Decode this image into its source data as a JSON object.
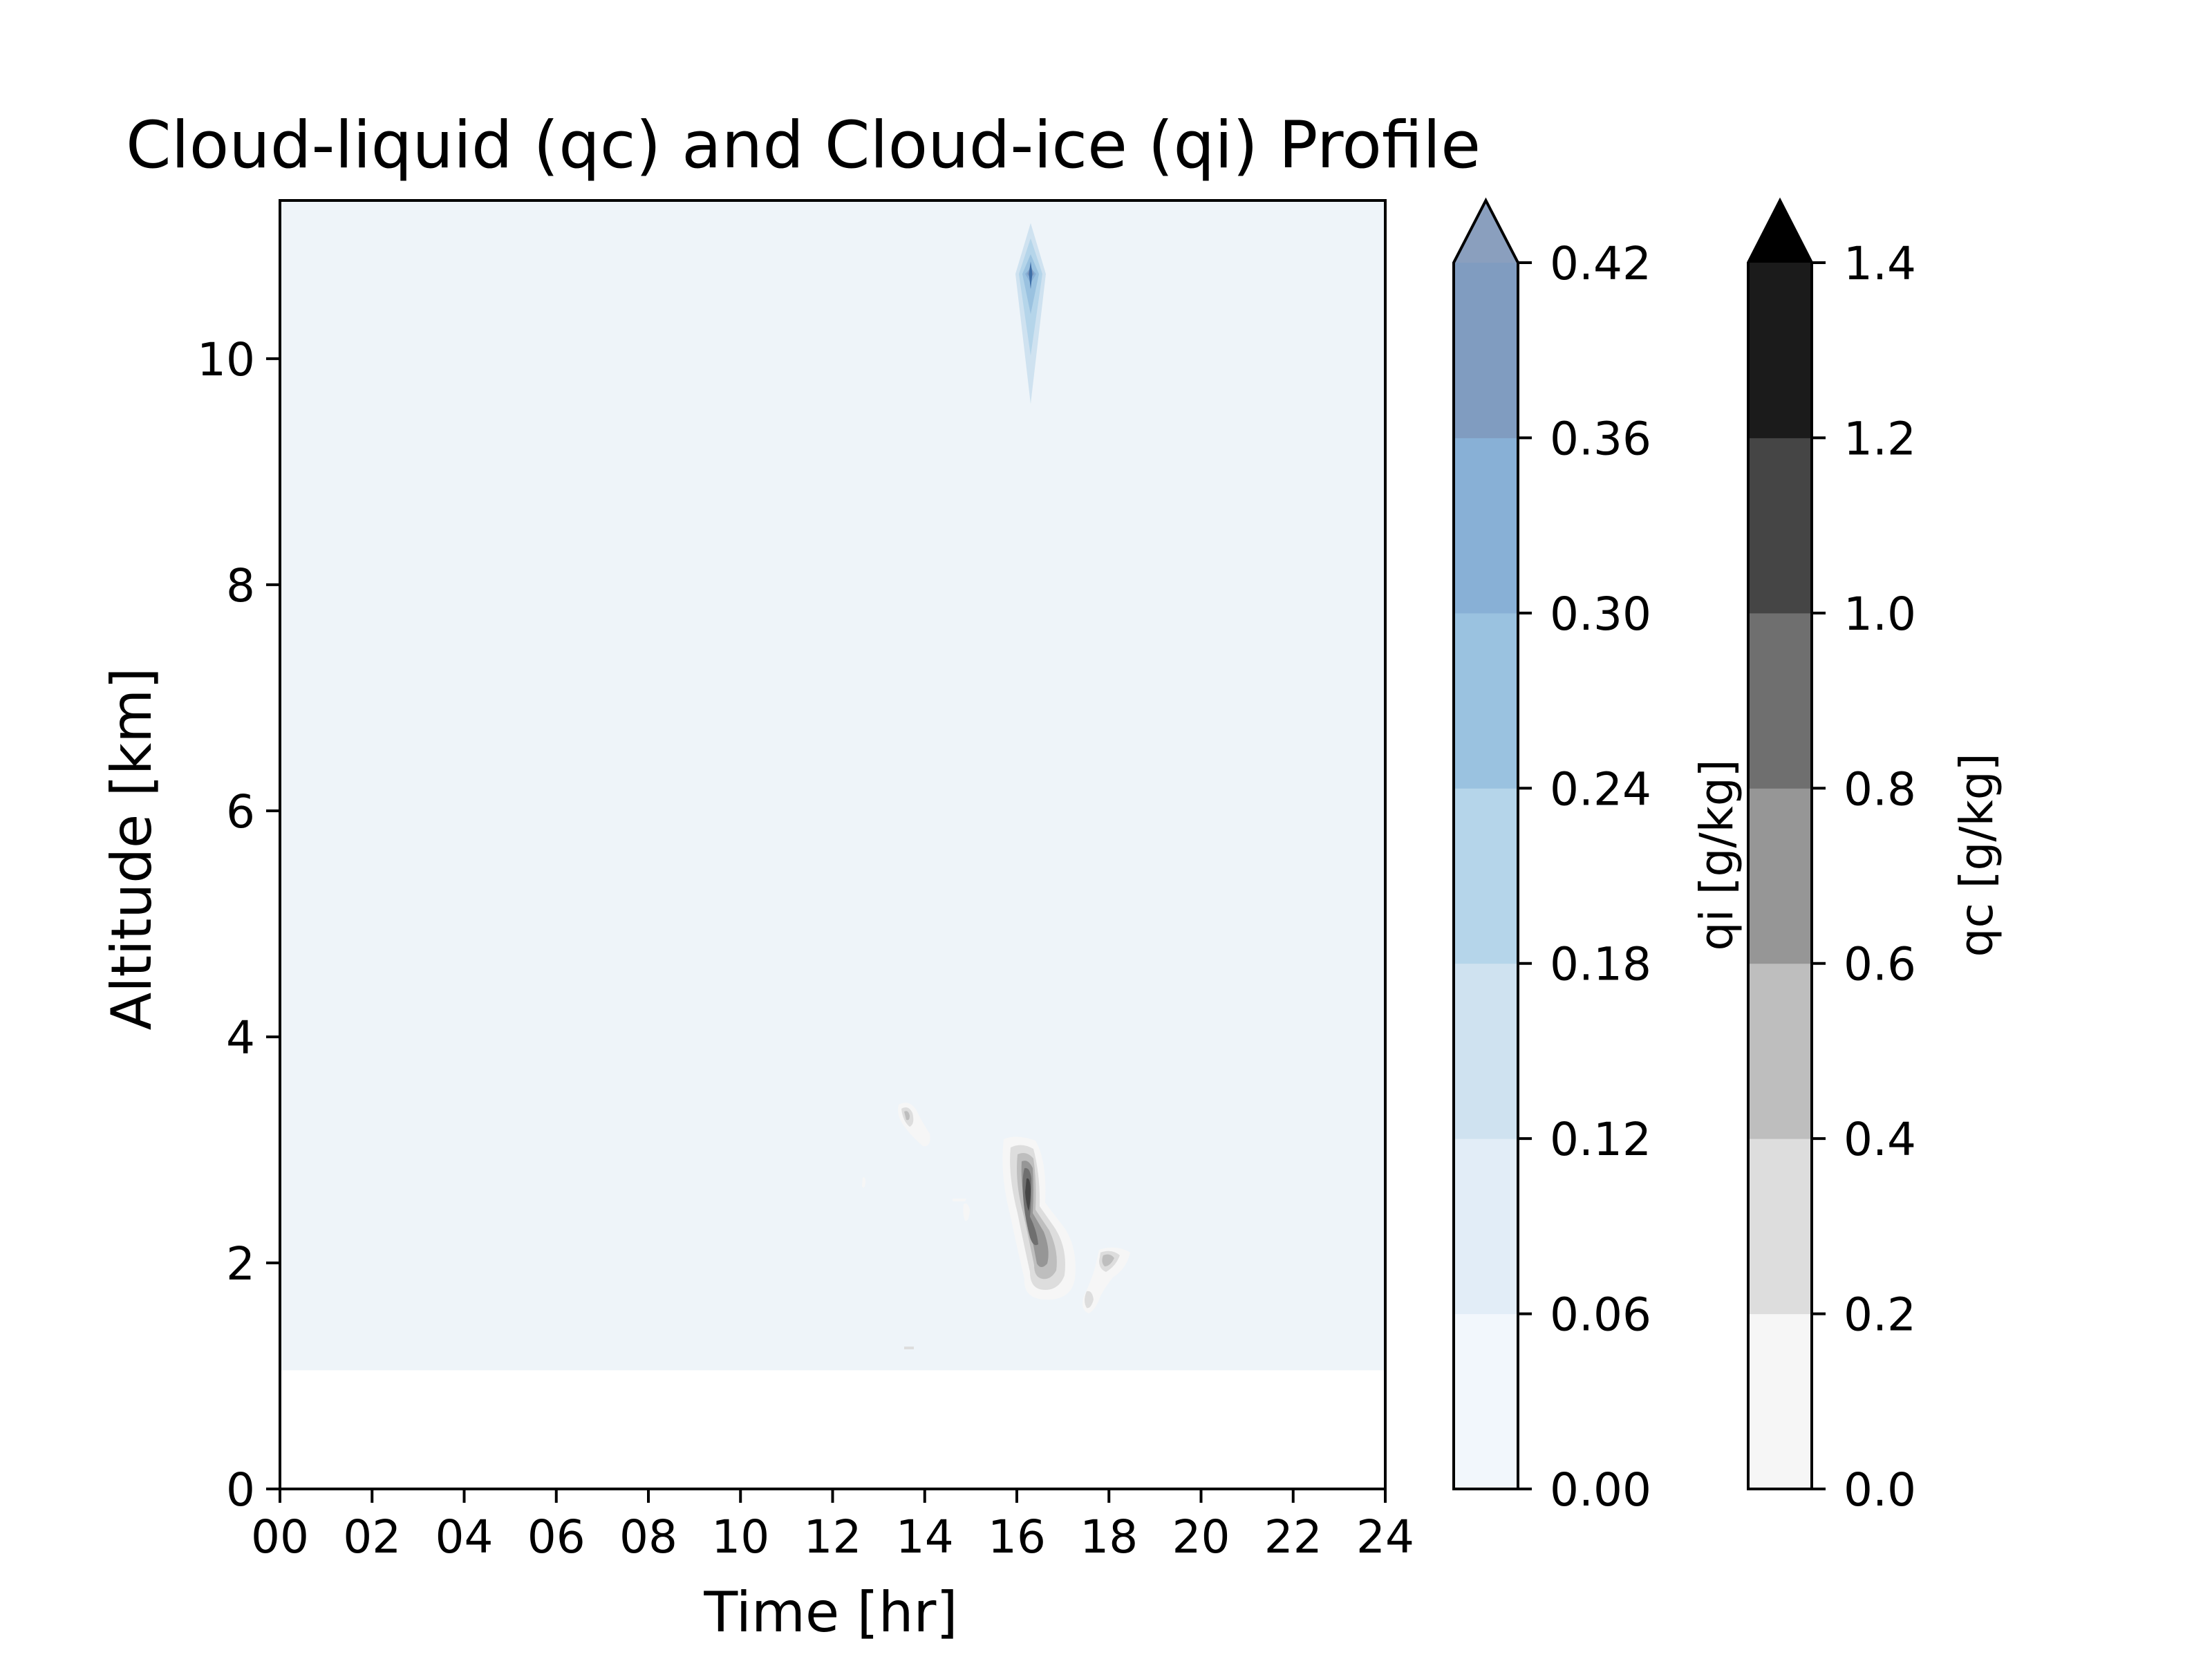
{
  "chart_data": {
    "type": "heatmap",
    "title": "Cloud-liquid (qc) and Cloud-ice (qi) Profile",
    "xlabel": "Time [hr]",
    "ylabel": "Altitude [km]",
    "xlim": [
      0,
      24
    ],
    "ylim": [
      0,
      11.4
    ],
    "x_ticks": [
      "00",
      "02",
      "04",
      "06",
      "08",
      "10",
      "12",
      "14",
      "16",
      "18",
      "20",
      "22",
      "24"
    ],
    "y_ticks": [
      "0",
      "2",
      "4",
      "6",
      "8",
      "10"
    ],
    "grid": false,
    "background_field": {
      "variable": "qi",
      "level": 0.02,
      "altitude_range_km": [
        1.05,
        11.4
      ],
      "time_range_hr": [
        0,
        24
      ]
    },
    "colorbars": [
      {
        "label": "qi [g/kg]",
        "levels": [
          "0.00",
          "0.06",
          "0.12",
          "0.18",
          "0.24",
          "0.30",
          "0.36",
          "0.42"
        ],
        "colors": [
          "#f2f7fc",
          "#e2edf7",
          "#cfe2f0",
          "#b5d5ea",
          "#9ac2e0",
          "#88b0d6",
          "#809cc0"
        ],
        "extend_color": "#8a9fbe"
      },
      {
        "label": "qc [g/kg]",
        "levels": [
          "0.0",
          "0.2",
          "0.4",
          "0.6",
          "0.8",
          "1.0",
          "1.2",
          "1.4"
        ],
        "colors": [
          "#f6f6f6",
          "#dddddd",
          "#bebebe",
          "#969696",
          "#6f6f6f",
          "#454545",
          "#1b1b1b"
        ],
        "extend_color": "#000000"
      }
    ],
    "features": [
      {
        "variable": "qi",
        "desc_id": "ice-plume",
        "time_hr": 16.3,
        "altitude_km": [
          9.6,
          11.2
        ],
        "peak": 0.42
      },
      {
        "variable": "qc",
        "desc_id": "main-liquid",
        "time_hr": [
          15.8,
          17.2
        ],
        "altitude_km": [
          1.7,
          3.1
        ],
        "peak": 1.0
      },
      {
        "variable": "qc",
        "desc_id": "small-liquid-18",
        "time_hr": [
          17.6,
          18.5
        ],
        "altitude_km": [
          1.5,
          2.1
        ],
        "peak": 0.6
      },
      {
        "variable": "qc",
        "desc_id": "small-liquid-14",
        "time_hr": [
          13.5,
          14.1
        ],
        "altitude_km": [
          3.0,
          3.4
        ],
        "peak": 0.4
      }
    ]
  }
}
